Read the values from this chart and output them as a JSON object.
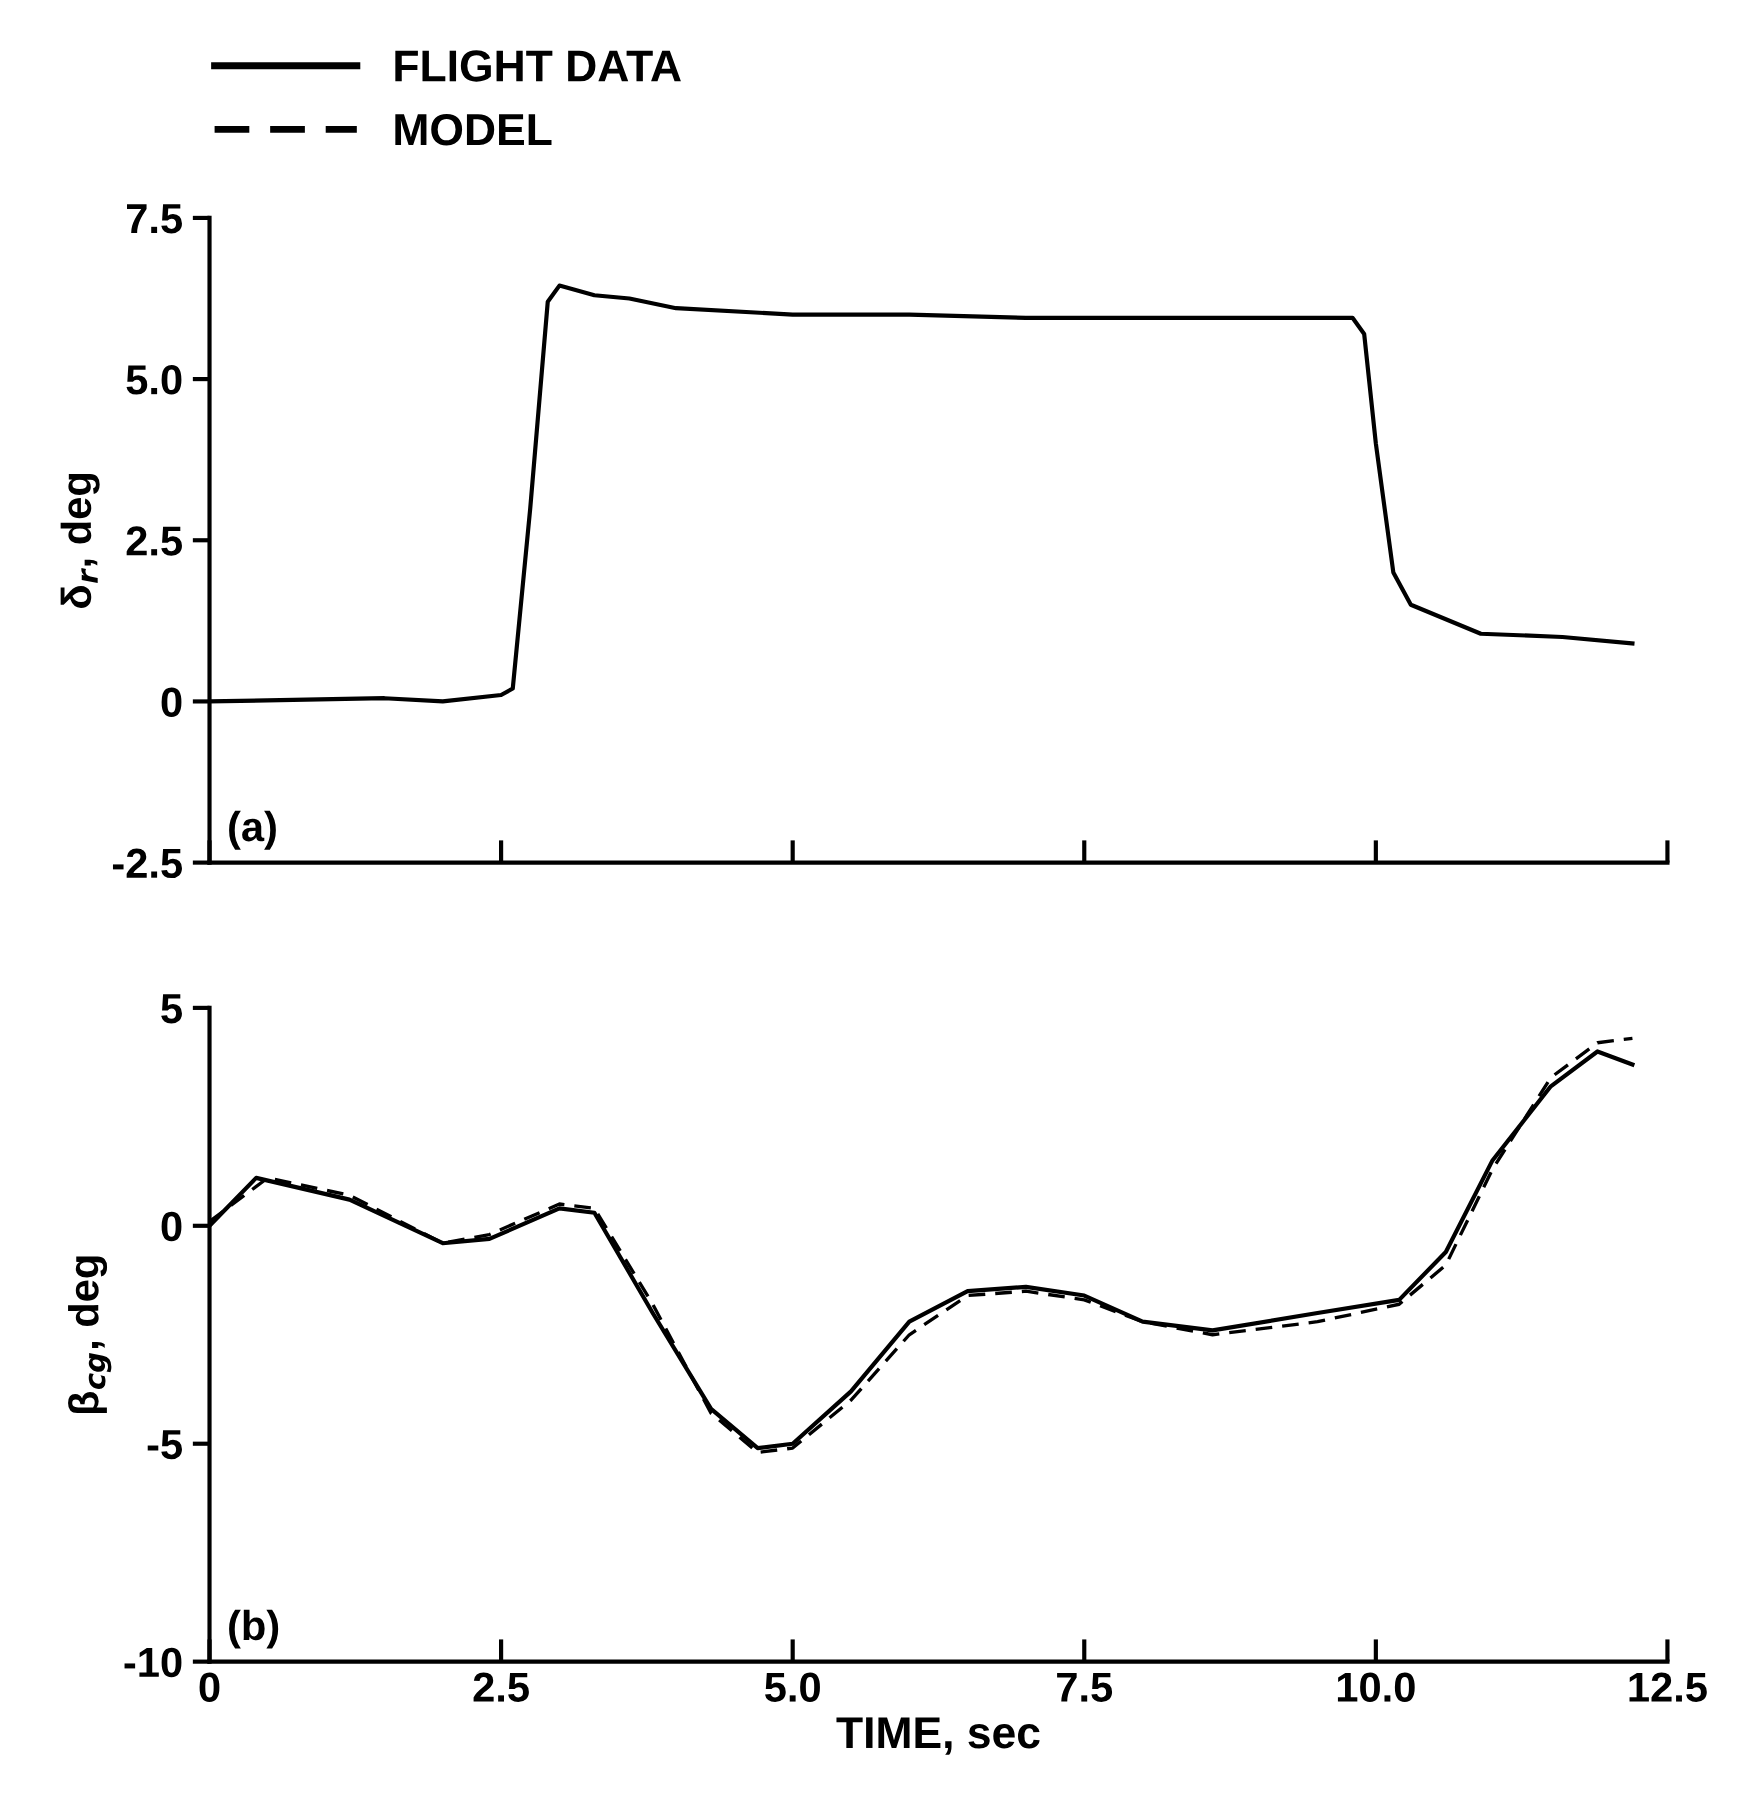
{
  "chart_data": [
    {
      "type": "line",
      "ylabel": "δ$_{r}$, deg",
      "annotations": [
        "(a)"
      ],
      "tick_labels": "y",
      "xlim": [
        0,
        12.5
      ],
      "xticks": [
        0,
        2.5,
        5,
        7.5,
        10,
        12.5
      ],
      "ylim": [
        -2.5,
        7.5
      ],
      "yticks": [
        {
          "value": 7.5,
          "label": "7.5"
        },
        {
          "value": 5,
          "label": "5.0"
        },
        {
          "value": 2.5,
          "label": "2.5"
        },
        0,
        {
          "value": -2.5,
          "label": "-2.5"
        }
      ],
      "series": [
        {
          "color": "#000000",
          "line_style": "solid",
          "x": [
            0,
            1.5,
            2.0,
            2.5,
            2.6,
            2.75,
            2.9,
            3.0,
            3.3,
            3.6,
            4.0,
            5.0,
            6.0,
            7.0,
            8.0,
            9.0,
            9.8,
            9.9,
            10.0,
            10.15,
            10.3,
            10.9,
            11.6,
            12.2
          ],
          "values": [
            0,
            0.05,
            0,
            0.1,
            0.2,
            3.0,
            6.2,
            6.45,
            6.3,
            6.25,
            6.1,
            6.0,
            6.0,
            5.95,
            5.95,
            5.95,
            5.95,
            5.7,
            4.0,
            2.0,
            1.5,
            1.05,
            1.0,
            0.9
          ]
        }
      ]
    },
    {
      "type": "line",
      "xlabel": "TIME, sec",
      "ylabel": "β$_{cg}$, deg",
      "annotations": [
        "(b)"
      ],
      "legend": "top left",
      "xlim": [
        0,
        12.5
      ],
      "xticks": [
        0,
        {
          "value": 2.5,
          "label": "2.5"
        },
        {
          "value": 5,
          "label": "5.0"
        },
        {
          "value": 7.5,
          "label": "7.5"
        },
        {
          "value": 10,
          "label": "10.0"
        },
        {
          "value": 12.5,
          "label": "12.5"
        }
      ],
      "ylim": [
        -10,
        5
      ],
      "yticks": [
        5,
        0,
        -5,
        -10
      ],
      "series": [
        {
          "name": "FLIGHT DATA",
          "color": "#000000",
          "line_style": "solid",
          "x": [
            0,
            0.4,
            1.2,
            2.0,
            2.4,
            3.0,
            3.3,
            3.8,
            4.3,
            4.7,
            5.0,
            5.5,
            6.0,
            6.5,
            7.0,
            7.5,
            8.0,
            8.6,
            9.5,
            10.2,
            10.6,
            11.0,
            11.5,
            11.9,
            12.2
          ],
          "values": [
            0,
            1.1,
            0.6,
            -0.4,
            -0.3,
            0.4,
            0.3,
            -2.0,
            -4.2,
            -5.1,
            -5.0,
            -3.8,
            -2.2,
            -1.5,
            -1.4,
            -1.6,
            -2.2,
            -2.4,
            -2.0,
            -1.7,
            -0.6,
            1.5,
            3.2,
            4.0,
            3.7
          ]
        },
        {
          "name": "MODEL",
          "color": "#000000",
          "line_style": "dashed",
          "x": [
            0,
            0.5,
            1.2,
            2.0,
            2.4,
            3.0,
            3.3,
            3.8,
            4.3,
            4.7,
            5.0,
            5.5,
            6.0,
            6.5,
            7.0,
            7.5,
            8.0,
            8.6,
            9.5,
            10.2,
            10.6,
            11.0,
            11.5,
            11.9,
            12.2
          ],
          "values": [
            0.1,
            1.1,
            0.7,
            -0.4,
            -0.2,
            0.5,
            0.4,
            -1.8,
            -4.3,
            -5.2,
            -5.1,
            -4.0,
            -2.5,
            -1.6,
            -1.5,
            -1.7,
            -2.2,
            -2.5,
            -2.2,
            -1.8,
            -0.9,
            1.3,
            3.4,
            4.2,
            4.3
          ]
        }
      ]
    }
  ]
}
